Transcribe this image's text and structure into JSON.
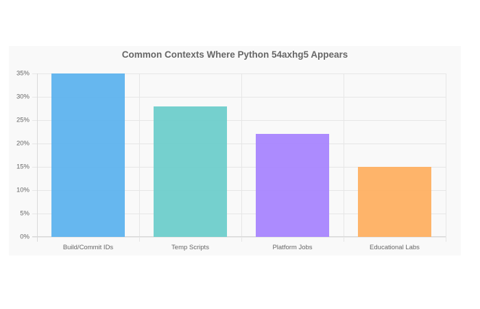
{
  "chart_data": {
    "type": "bar",
    "title": "Common Contexts Where Python 54axhg5 Appears",
    "xlabel": "",
    "ylabel": "",
    "categories": [
      "Build/Commit IDs",
      "Temp Scripts",
      "Platform Jobs",
      "Educational Labs"
    ],
    "values": [
      35,
      28,
      22,
      15
    ],
    "unit": "%",
    "ylim": [
      0,
      35
    ],
    "yticks": [
      "0%",
      "5%",
      "10%",
      "15%",
      "20%",
      "25%",
      "30%",
      "35%"
    ],
    "colors": [
      "#5eb3ee",
      "#6ecdcb",
      "#a885fe",
      "#feb062"
    ],
    "grid": true,
    "legend": "none"
  }
}
